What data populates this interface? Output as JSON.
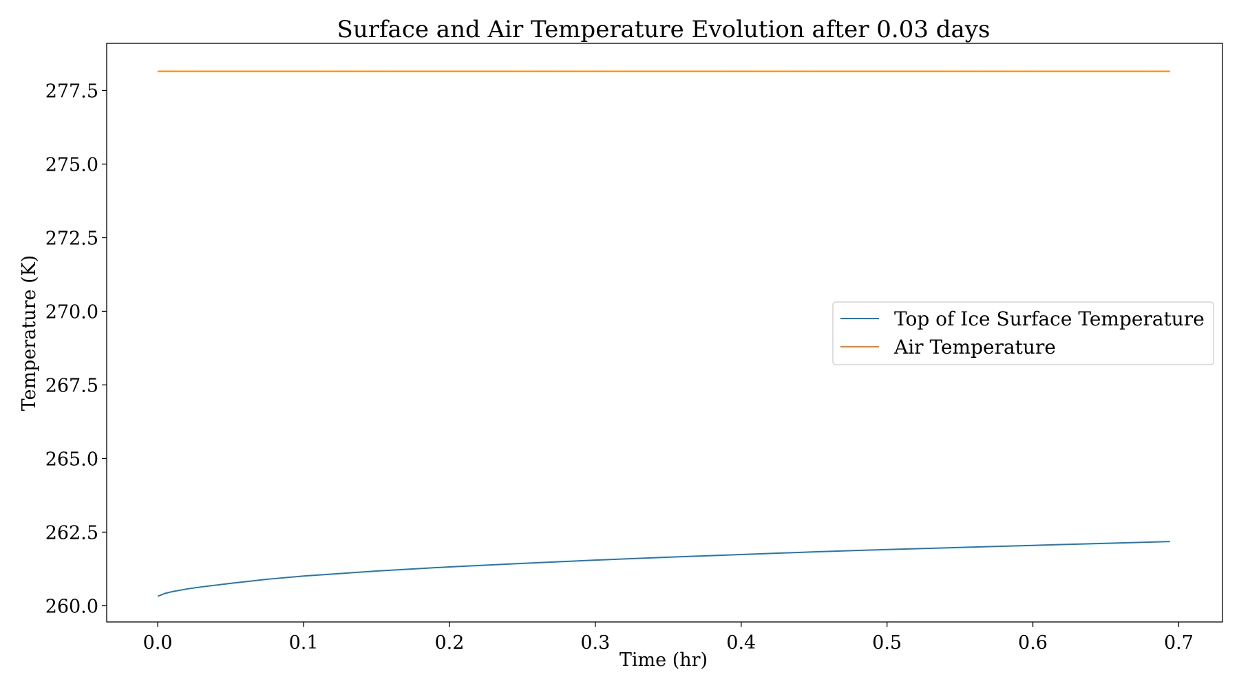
{
  "chart_data": {
    "type": "line",
    "title": "Surface and Air Temperature Evolution after 0.03 days",
    "xlabel": "Time (hr)",
    "ylabel": "Temperature (K)",
    "xlim": [
      -0.035,
      0.73
    ],
    "ylim": [
      259.45,
      279.1
    ],
    "xticks": [
      0.0,
      0.1,
      0.2,
      0.3,
      0.4,
      0.5,
      0.6,
      0.7
    ],
    "xtick_labels": [
      "0.0",
      "0.1",
      "0.2",
      "0.3",
      "0.4",
      "0.5",
      "0.6",
      "0.7"
    ],
    "yticks": [
      260.0,
      262.5,
      265.0,
      267.5,
      270.0,
      272.5,
      275.0,
      277.5
    ],
    "ytick_labels": [
      "260.0",
      "262.5",
      "265.0",
      "267.5",
      "270.0",
      "272.5",
      "275.0",
      "277.5"
    ],
    "grid": false,
    "legend_position": "center-right",
    "series": [
      {
        "name": "Top of Ice Surface Temperature",
        "color": "#1f77b4",
        "x": [
          0.0,
          0.005,
          0.01,
          0.02,
          0.03,
          0.05,
          0.075,
          0.1,
          0.15,
          0.2,
          0.25,
          0.3,
          0.35,
          0.4,
          0.45,
          0.5,
          0.55,
          0.6,
          0.65,
          0.694
        ],
        "y": [
          260.32,
          260.42,
          260.48,
          260.57,
          260.64,
          260.76,
          260.9,
          261.01,
          261.18,
          261.32,
          261.44,
          261.55,
          261.65,
          261.74,
          261.83,
          261.91,
          261.98,
          262.05,
          262.12,
          262.18
        ]
      },
      {
        "name": "Air Temperature",
        "color": "#ff7f0e",
        "x": [
          0.0,
          0.694
        ],
        "y": [
          278.15,
          278.15
        ]
      }
    ]
  }
}
